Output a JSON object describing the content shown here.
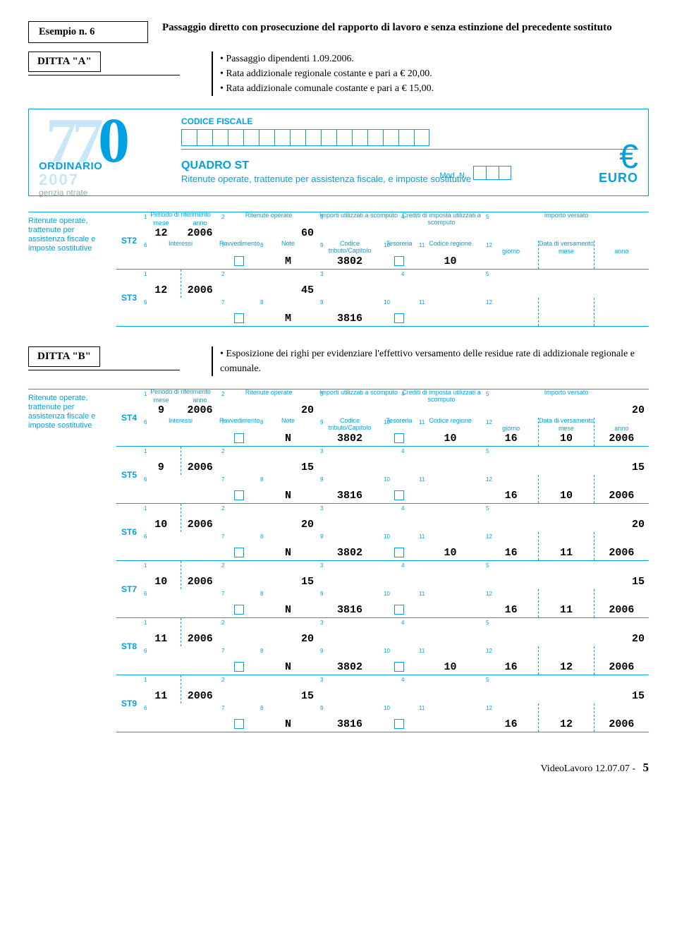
{
  "example": {
    "label": "Esempio n. 6"
  },
  "title": "Passaggio diretto con prosecuzione del rapporto di lavoro e senza estinzione del precedente sostituto",
  "dittaA": {
    "label": "DITTA \"A\"",
    "items": [
      "Passaggio dipendenti 1.09.2006.",
      "Rata addizionale regionale costante e pari a € 20,00.",
      "Rata addizionale comunale costante e pari a € 15,00."
    ]
  },
  "header770": {
    "big": {
      "d1": "7",
      "d2": "7",
      "d3": "0"
    },
    "ordinario": "ORDINARIO",
    "year": "2007",
    "agenzia": "genzia ntrate",
    "cf_label": "CODICE FISCALE",
    "quadro": "QUADRO ST",
    "quadro_sub": "Ritenute operate, trattenute per assistenza fiscale, e imposte sostitutive",
    "modn": "Mod. N.",
    "euro": "EURO"
  },
  "section_label": "Ritenute operate, trattenute per assistenza fiscale e imposte sostitutive",
  "cols": {
    "periodo": "Periodo di riferimento",
    "mese": "mese",
    "anno": "anno",
    "ritop": "Ritenute operate",
    "imp": "Importi utilizzati a scomputo",
    "cred": "Crediti di imposta utilizzati a scomputo",
    "impver": "Importo versato",
    "int": "Interessi",
    "rav": "Ravvedimento",
    "note": "Note",
    "cod": "Codice tributo/Capitolo",
    "tes": "Tesoreria",
    "reg": "Codice regione",
    "data": "Data di versamento",
    "g": "giorno",
    "m": "mese",
    "a": "anno"
  },
  "rowsA": [
    {
      "id": "ST2",
      "mese": "12",
      "anno": "2006",
      "ritop": "60",
      "note": "M",
      "cod": "3802",
      "reg": "10",
      "show_headers": true
    },
    {
      "id": "ST3",
      "mese": "12",
      "anno": "2006",
      "ritop": "45",
      "note": "M",
      "cod": "3816",
      "show_headers": false
    }
  ],
  "dittaB": {
    "label": "DITTA \"B\"",
    "items": [
      "Esposizione dei righi per evidenziare l'effettivo versamento delle residue rate di addizionale regionale e comunale."
    ]
  },
  "rowsB": [
    {
      "id": "ST4",
      "mese": "9",
      "anno": "2006",
      "ritop": "20",
      "impver": "20",
      "note": "N",
      "cod": "3802",
      "reg": "10",
      "dg": "16",
      "dm": "10",
      "da": "2006",
      "show_headers": true
    },
    {
      "id": "ST5",
      "mese": "9",
      "anno": "2006",
      "ritop": "15",
      "impver": "15",
      "note": "N",
      "cod": "3816",
      "dg": "16",
      "dm": "10",
      "da": "2006"
    },
    {
      "id": "ST6",
      "mese": "10",
      "anno": "2006",
      "ritop": "20",
      "impver": "20",
      "note": "N",
      "cod": "3802",
      "reg": "10",
      "dg": "16",
      "dm": "11",
      "da": "2006"
    },
    {
      "id": "ST7",
      "mese": "10",
      "anno": "2006",
      "ritop": "15",
      "impver": "15",
      "note": "N",
      "cod": "3816",
      "dg": "16",
      "dm": "11",
      "da": "2006"
    },
    {
      "id": "ST8",
      "mese": "11",
      "anno": "2006",
      "ritop": "20",
      "impver": "20",
      "note": "N",
      "cod": "3802",
      "reg": "10",
      "dg": "16",
      "dm": "12",
      "da": "2006"
    },
    {
      "id": "ST9",
      "mese": "11",
      "anno": "2006",
      "ritop": "15",
      "impver": "15",
      "note": "N",
      "cod": "3816",
      "dg": "16",
      "dm": "12",
      "da": "2006"
    }
  ],
  "footer": {
    "text": "VideoLavoro 12.07.07 -",
    "page": "5"
  }
}
